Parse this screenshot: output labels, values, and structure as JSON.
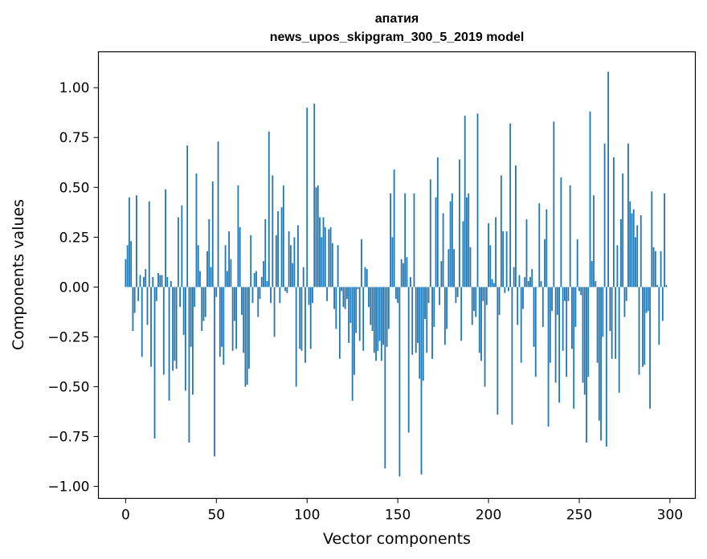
{
  "chart_data": {
    "type": "bar",
    "title": "апатия",
    "subtitle": "news_upos_skipgram_300_5_2019 model",
    "xlabel": "Vector components",
    "ylabel": "Components values",
    "xlim": [
      -15,
      314
    ],
    "ylim": [
      -1.06,
      1.18
    ],
    "xticks": [
      0,
      50,
      100,
      150,
      200,
      250,
      300
    ],
    "yticks": [
      -1.0,
      -0.75,
      -0.5,
      -0.25,
      0.0,
      0.25,
      0.5,
      0.75,
      1.0
    ],
    "xtick_labels": [
      "0",
      "50",
      "100",
      "150",
      "200",
      "250",
      "300"
    ],
    "ytick_labels": [
      "−1.00",
      "−0.75",
      "−0.50",
      "−0.25",
      "0.00",
      "0.25",
      "0.50",
      "0.75",
      "1.00"
    ],
    "bar_color": "#1f77b4",
    "values": [
      0.14,
      0.21,
      0.45,
      0.23,
      -0.22,
      -0.13,
      0.46,
      -0.07,
      0.06,
      -0.35,
      0.05,
      0.09,
      -0.19,
      0.43,
      -0.4,
      0.05,
      -0.76,
      -0.07,
      0.07,
      0.06,
      0.06,
      -0.44,
      0.49,
      0.05,
      -0.57,
      0.03,
      -0.42,
      -0.37,
      -0.41,
      0.35,
      -0.1,
      0.41,
      -0.24,
      -0.52,
      0.71,
      -0.78,
      -0.3,
      -0.54,
      -0.1,
      0.57,
      0.21,
      0.08,
      -0.22,
      -0.17,
      -0.15,
      0.18,
      0.34,
      0.1,
      0.53,
      -0.85,
      -0.05,
      0.73,
      -0.35,
      -0.3,
      -0.39,
      0.21,
      0.08,
      0.28,
      0.14,
      -0.32,
      -0.17,
      -0.31,
      0.51,
      0.3,
      -0.14,
      -0.33,
      -0.5,
      -0.49,
      -0.41,
      0.26,
      -0.08,
      0.07,
      0.08,
      -0.15,
      -0.06,
      0.05,
      0.13,
      0.34,
      0.03,
      0.78,
      -0.08,
      0.56,
      -0.25,
      0.26,
      0.38,
      -0.08,
      0.4,
      0.51,
      -0.02,
      -0.03,
      0.28,
      0.21,
      0.12,
      0.25,
      -0.5,
      0.31,
      -0.31,
      -0.32,
      0.1,
      -0.38,
      0.9,
      -0.09,
      -0.31,
      -0.08,
      0.92,
      0.5,
      0.51,
      0.35,
      0.25,
      0.35,
      0.3,
      -0.07,
      0.29,
      0.3,
      0.22,
      -0.11,
      -0.21,
      0.21,
      -0.36,
      -0.02,
      -0.1,
      -0.11,
      -0.06,
      -0.28,
      -0.18,
      -0.57,
      -0.44,
      -0.23,
      -0.01,
      -0.27,
      0.24,
      -0.32,
      0.1,
      0.09,
      -0.1,
      -0.19,
      -0.22,
      -0.33,
      -0.37,
      -0.32,
      -0.27,
      -0.37,
      -0.29,
      -0.91,
      -0.3,
      -0.21,
      0.47,
      0.25,
      0.59,
      -0.06,
      -0.08,
      -0.95,
      0.14,
      0.12,
      0.47,
      0.15,
      -0.73,
      0.05,
      -0.34,
      0.47,
      -0.33,
      -0.28,
      -0.46,
      -0.94,
      -0.47,
      -0.16,
      -0.33,
      -0.08,
      0.54,
      -0.36,
      -0.2,
      0.45,
      0.65,
      -0.09,
      0.13,
      0.37,
      -0.29,
      -0.21,
      0.19,
      0.43,
      0.47,
      0.19,
      -0.08,
      -0.05,
      0.64,
      -0.27,
      0.33,
      0.86,
      0.45,
      0.47,
      0.2,
      -0.19,
      -0.12,
      -0.15,
      0.87,
      -0.33,
      -0.37,
      -0.07,
      -0.5,
      -0.09,
      0.32,
      0.21,
      0.04,
      0.02,
      0.35,
      -0.64,
      -0.14,
      0.56,
      0.28,
      -0.03,
      0.28,
      -0.02,
      0.82,
      -0.69,
      0.1,
      0.61,
      -0.19,
      0.06,
      -0.38,
      -0.11,
      0.05,
      0.34,
      0.03,
      0.05,
      0.09,
      -0.3,
      -0.45,
      0.0,
      0.42,
      0.03,
      -0.2,
      0.24,
      0.39,
      -0.7,
      -0.38,
      -0.12,
      0.83,
      -0.48,
      -0.14,
      -0.58,
      0.55,
      -0.32,
      -0.07,
      -0.45,
      -0.07,
      0.51,
      -0.31,
      -0.61,
      -0.2,
      0.24,
      -0.02,
      -0.04,
      -0.48,
      -0.54,
      -0.78,
      -0.45,
      0.88,
      0.13,
      0.46,
      0.03,
      -0.38,
      -0.67,
      -0.77,
      -0.25,
      0.72,
      -0.8,
      1.08,
      -0.22,
      -0.36,
      0.65,
      -0.36,
      0.21,
      -0.53,
      0.34,
      0.57,
      -0.15,
      -0.07,
      0.72,
      0.43,
      0.37,
      0.39,
      0.25,
      0.31,
      -0.44,
      0.36,
      -0.4,
      -0.39,
      -0.13,
      -0.12,
      -0.61,
      0.48,
      0.2,
      0.18,
      0.01,
      -0.29,
      0.18,
      -0.17,
      0.47,
      0.01
    ]
  }
}
